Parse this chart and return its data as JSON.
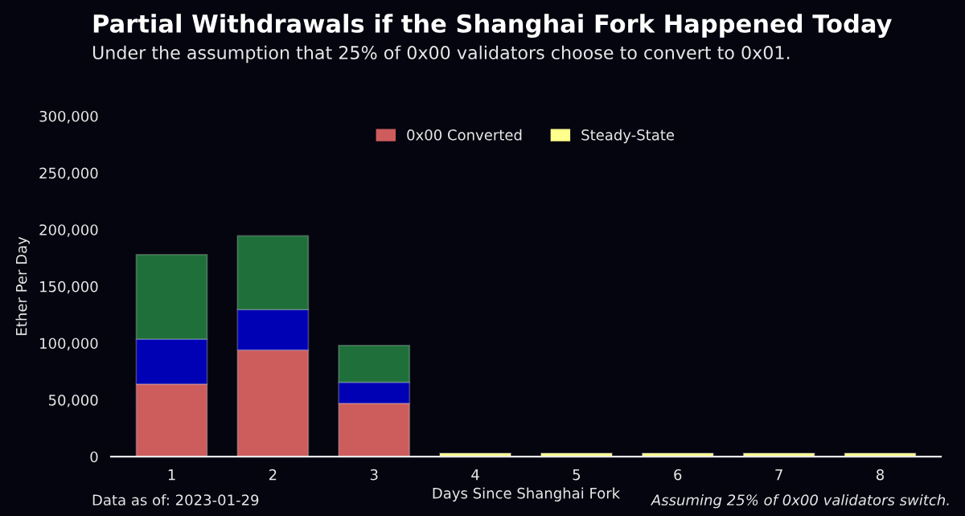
{
  "chart_data": {
    "type": "bar",
    "title": "Partial Withdrawals if the Shanghai Fork Happened Today",
    "subtitle": "Under the assumption that 25% of 0x00 validators choose to convert to 0x01.",
    "xlabel": "Days Since Shanghai Fork",
    "ylabel": "Ether Per Day",
    "categories": [
      "1",
      "2",
      "3",
      "4",
      "5",
      "6",
      "7",
      "8"
    ],
    "stacked": true,
    "series": [
      {
        "name": "0x00 Converted",
        "color": "#cd5c5c",
        "values": [
          64000,
          94000,
          47000,
          null,
          null,
          null,
          null,
          null
        ]
      },
      {
        "color": "#0000b4",
        "values": [
          39500,
          35500,
          18500,
          null,
          null,
          null,
          null,
          null
        ]
      },
      {
        "color": "#1f6f3a",
        "values": [
          74500,
          65000,
          32500,
          null,
          null,
          null,
          null,
          null
        ]
      },
      {
        "name": "Steady-State",
        "color": "#ffff8c",
        "values": [
          null,
          null,
          null,
          3000,
          3000,
          3000,
          3000,
          3000
        ]
      }
    ],
    "ylim": [
      0,
      300000
    ],
    "yticks": [
      {
        "value": 0,
        "label": "0"
      },
      {
        "value": 50000,
        "label": "50,000"
      },
      {
        "value": 100000,
        "label": "100,000"
      },
      {
        "value": 150000,
        "label": "150,000"
      },
      {
        "value": 200000,
        "label": "200,000"
      },
      {
        "value": 250000,
        "label": "250,000"
      },
      {
        "value": 300000,
        "label": "300,000"
      }
    ],
    "grid": false,
    "legend": "top",
    "annotations": [
      "Data as of: 2023-01-29",
      "Assuming 25% of 0x00 validators switch."
    ]
  }
}
